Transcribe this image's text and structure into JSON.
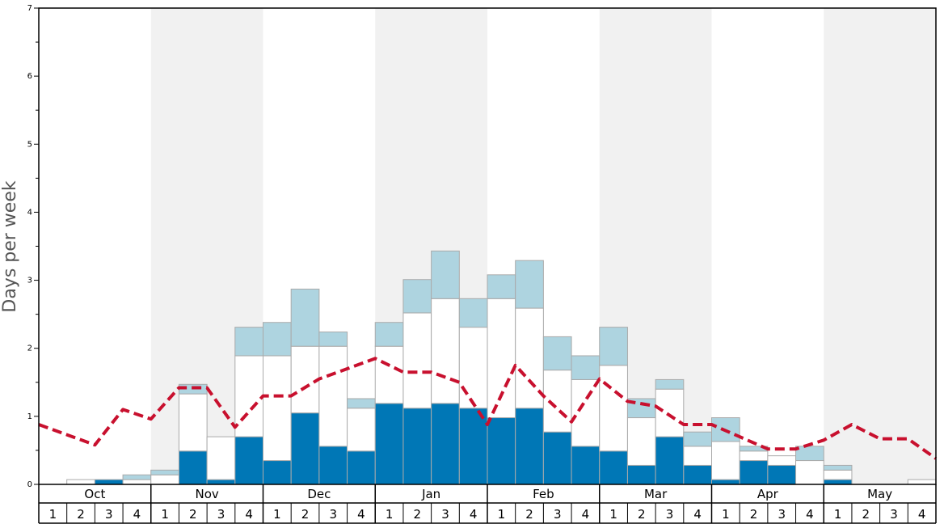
{
  "chart_data": {
    "type": "bar",
    "title": "",
    "xlabel": "",
    "ylabel": "Days per week",
    "ylim": [
      0,
      7
    ],
    "y_ticks": [
      "0",
      "1",
      "2",
      "3",
      "4",
      "5",
      "6",
      "7"
    ],
    "months": [
      "Oct",
      "Nov",
      "Dec",
      "Jan",
      "Feb",
      "Mar",
      "Apr",
      "May"
    ],
    "weeks": [
      "1",
      "2",
      "3",
      "4"
    ],
    "colors": {
      "bottom": "#0077b6",
      "middle": "#ffffff",
      "top": "#aed4e0",
      "line": "#c8102e",
      "band": "#f1f1f1",
      "bar_edge": "#aaaaaa"
    },
    "series": [
      {
        "name": "bottom",
        "values": [
          0,
          0,
          0.07,
          0,
          0,
          0.49,
          0.07,
          0.7,
          0.35,
          1.05,
          0.56,
          0.49,
          1.19,
          1.12,
          1.19,
          1.12,
          0.98,
          1.12,
          0.77,
          0.56,
          0.49,
          0.28,
          0.7,
          0.28,
          0.07,
          0.35,
          0.28,
          0,
          0.07,
          0,
          0,
          0
        ]
      },
      {
        "name": "middle",
        "values": [
          0,
          0.07,
          0,
          0.07,
          0.14,
          0.84,
          0.63,
          1.19,
          1.54,
          0.98,
          1.47,
          0.63,
          0.84,
          1.4,
          1.54,
          1.19,
          1.75,
          1.47,
          0.91,
          0.98,
          1.26,
          0.7,
          0.7,
          0.28,
          0.56,
          0.14,
          0.14,
          0.35,
          0.14,
          0,
          0,
          0.07
        ]
      },
      {
        "name": "top",
        "values": [
          0,
          0,
          0,
          0.07,
          0.07,
          0.14,
          0,
          0.42,
          0.49,
          0.84,
          0.21,
          0.14,
          0.35,
          0.49,
          0.7,
          0.42,
          0.35,
          0.7,
          0.49,
          0.35,
          0.56,
          0.28,
          0.14,
          0.21,
          0.35,
          0.07,
          0,
          0.21,
          0.07,
          0,
          0,
          0
        ]
      },
      {
        "name": "average",
        "type": "line",
        "values": [
          0.88,
          0.73,
          0.58,
          1.1,
          0.96,
          1.42,
          1.42,
          0.84,
          1.3,
          1.3,
          1.55,
          1.7,
          1.85,
          1.65,
          1.65,
          1.5,
          0.88,
          1.75,
          1.3,
          0.92,
          1.55,
          1.22,
          1.15,
          0.88,
          0.88,
          0.7,
          0.52,
          0.52,
          0.65,
          0.88,
          0.67,
          0.67
        ]
      }
    ],
    "line_end_value": 0.38
  }
}
